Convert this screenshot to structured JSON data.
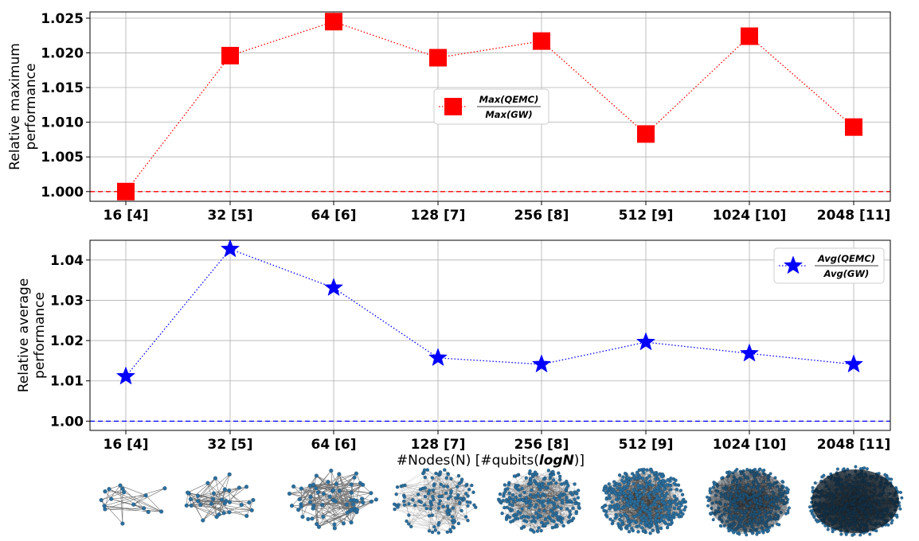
{
  "chart_data": [
    {
      "type": "line",
      "categories": [
        "16 [4]",
        "32 [5]",
        "64 [6]",
        "128 [7]",
        "256 [8]",
        "512 [9]",
        "1024 [10]",
        "2048 [11]"
      ],
      "series": [
        {
          "name_numerator": "Max(QEMC)",
          "name_denominator": "Max(GW)",
          "values": [
            1.0,
            1.0196,
            1.0245,
            1.0193,
            1.0217,
            1.0083,
            1.0224,
            1.0093
          ],
          "color": "#ff0000",
          "marker": "square",
          "line_style": "dotted"
        }
      ],
      "reference_line": {
        "y": 1.0,
        "color": "#ff0000",
        "style": "dashed"
      },
      "ylabel_lines": [
        "Relative maximum",
        "performance"
      ],
      "xlabel": "",
      "yticks": [
        "1.000",
        "1.005",
        "1.010",
        "1.015",
        "1.020",
        "1.025"
      ],
      "ylim": [
        0.9986,
        1.0259
      ],
      "grid": true,
      "legend_position": "center"
    },
    {
      "type": "line",
      "categories": [
        "16 [4]",
        "32 [5]",
        "64 [6]",
        "128 [7]",
        "256 [8]",
        "512 [9]",
        "1024 [10]",
        "2048 [11]"
      ],
      "series": [
        {
          "name_numerator": "Avg(QEMC)",
          "name_denominator": "Avg(GW)",
          "values": [
            1.0111,
            1.0427,
            1.0331,
            1.0157,
            1.0141,
            1.0196,
            1.0168,
            1.0141
          ],
          "color": "#0000ff",
          "marker": "star",
          "line_style": "dotted"
        }
      ],
      "reference_line": {
        "y": 1.0,
        "color": "#0000ff",
        "style": "dashed"
      },
      "ylabel_lines": [
        "Relative average",
        "performance"
      ],
      "xlabel_prefix": "#Nodes(N) [#qubits(",
      "xlabel_emph": "logN",
      "xlabel_suffix": ")]",
      "yticks": [
        "1.00",
        "1.01",
        "1.02",
        "1.03",
        "1.04"
      ],
      "ylim": [
        0.9977,
        1.0449
      ],
      "grid": true,
      "legend_position": "upper right"
    }
  ],
  "graph_thumbnails": {
    "node_color": "#2b6f9e",
    "edge_color": "#333333",
    "node_counts": [
      16,
      32,
      64,
      128,
      256,
      512,
      1024,
      2048
    ]
  }
}
